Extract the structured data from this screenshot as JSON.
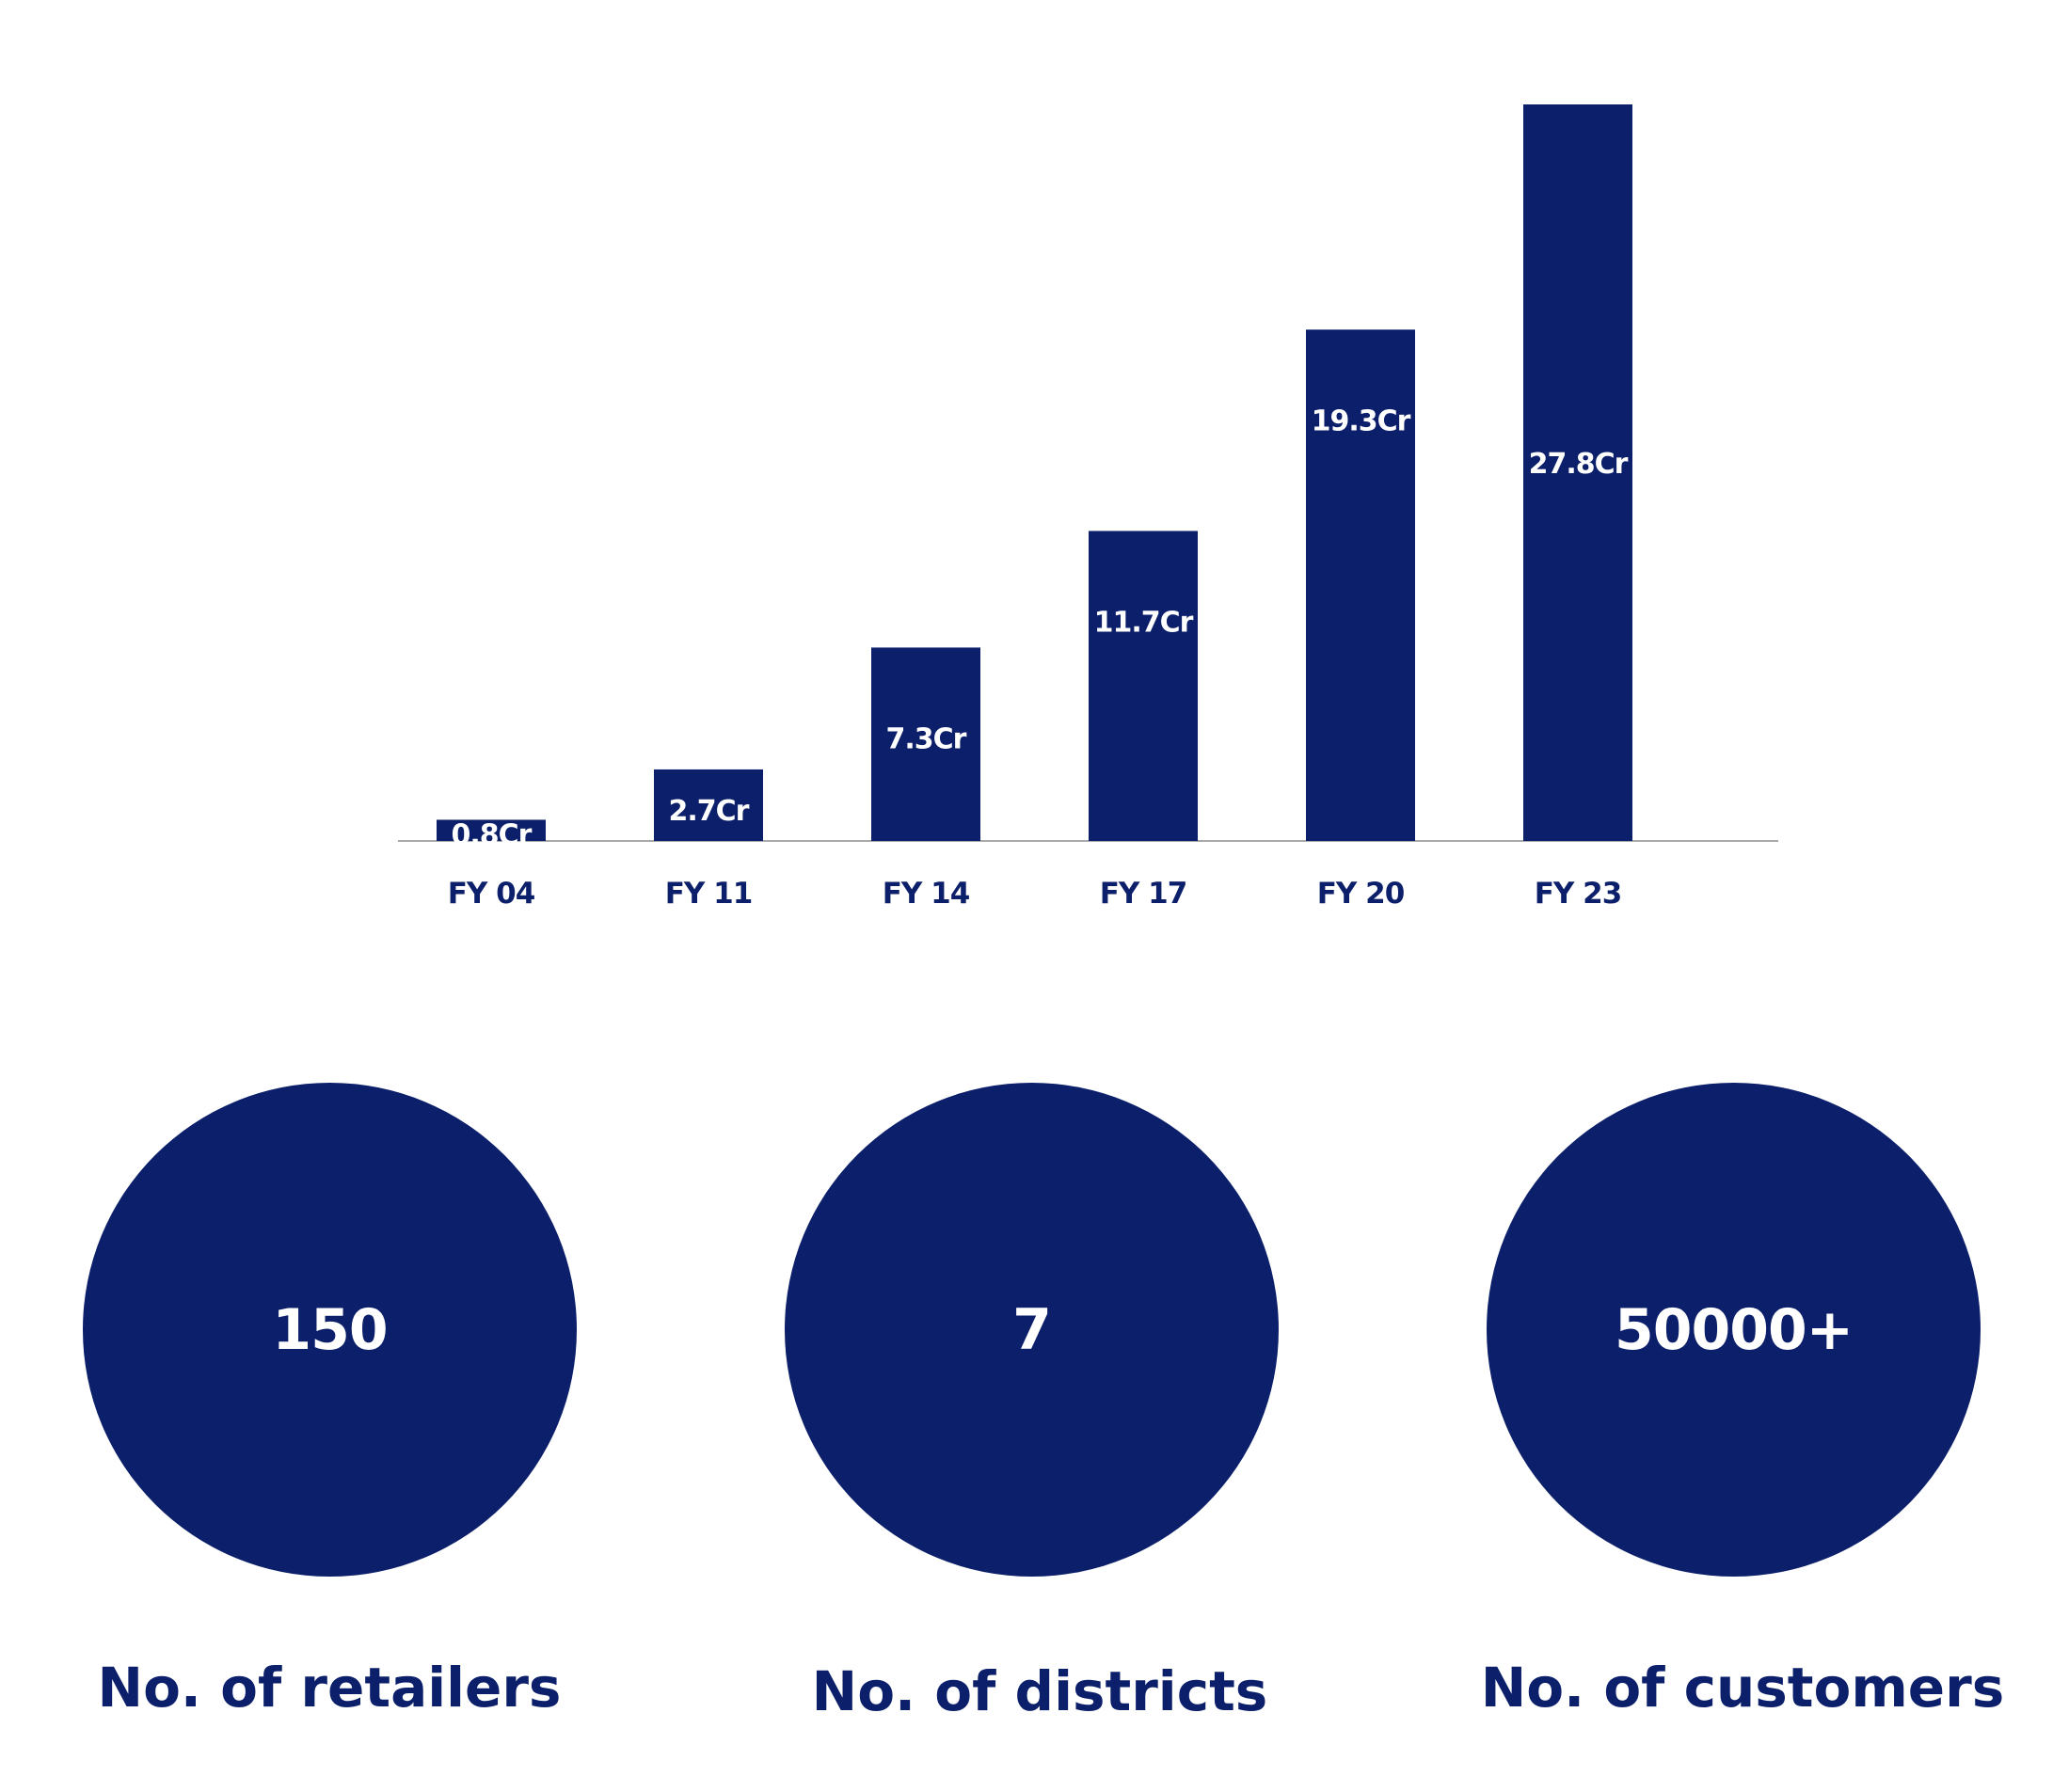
{
  "colors": {
    "primary": "#0c1f6b",
    "bar_text": "#ffffff",
    "axis": "#aaaaaa",
    "background": "#ffffff"
  },
  "chart_data": {
    "type": "bar",
    "categories": [
      "FY 04",
      "FY 11",
      "FY 14",
      "FY 17",
      "FY 20",
      "FY 23"
    ],
    "values": [
      0.8,
      2.7,
      7.3,
      11.7,
      19.3,
      27.8
    ],
    "data_labels": [
      "0.8Cr",
      "2.7Cr",
      "7.3Cr",
      "11.7Cr",
      "19.3Cr",
      "27.8Cr"
    ],
    "unit": "Cr",
    "title": "",
    "xlabel": "",
    "ylabel": "",
    "grid": false,
    "legend": "none"
  },
  "stats": [
    {
      "value": "150",
      "label": "No. of retailers"
    },
    {
      "value": "7",
      "label": "No. of districts"
    },
    {
      "value": "50000+",
      "label": "No. of customers"
    }
  ]
}
